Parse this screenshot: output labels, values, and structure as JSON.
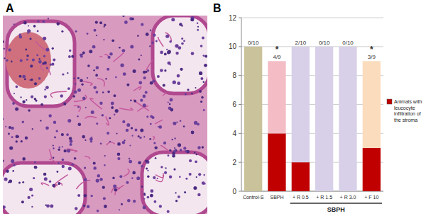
{
  "panels": {
    "a_label": "A",
    "b_label": "B"
  },
  "chart_data": {
    "type": "bar",
    "stacked": true,
    "grid": true,
    "legend": "right",
    "categories": [
      "Control-S",
      "SBPH",
      "+ R 0.5",
      "+ R 1.5",
      "+ R 3.0",
      "+ F 10"
    ],
    "series": [
      {
        "name": "Animals with leucocyte infiltration of the stroma",
        "color": "#c00000",
        "values": [
          0,
          4,
          2,
          0,
          0,
          3
        ]
      },
      {
        "colors": [
          "#c9c29a",
          "#f4bcc4",
          "#d8d0e8",
          "#d8d0e8",
          "#d8d0e8",
          "#fbdcbd"
        ],
        "values": [
          10,
          5,
          8,
          10,
          10,
          6
        ]
      }
    ],
    "bar_labels": [
      "0/10",
      "4/9",
      "2/10",
      "0/10",
      "0/10",
      "3/9"
    ],
    "significance": [
      null,
      "*",
      null,
      null,
      null,
      "*"
    ],
    "group_label": "SBPH",
    "ylim": [
      0,
      12
    ],
    "yticks": [
      0,
      2,
      4,
      6,
      8,
      10,
      12
    ]
  }
}
